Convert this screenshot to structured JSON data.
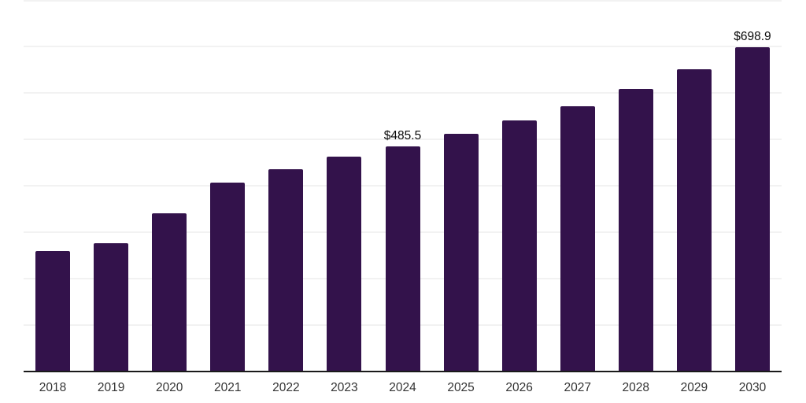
{
  "chart_data": {
    "type": "bar",
    "title": "",
    "xlabel": "",
    "ylabel": "",
    "categories": [
      "2018",
      "2019",
      "2020",
      "2021",
      "2022",
      "2023",
      "2024",
      "2025",
      "2026",
      "2027",
      "2028",
      "2029",
      "2030"
    ],
    "values": [
      259.5,
      276.4,
      340.7,
      406.8,
      435.6,
      462.7,
      485.5,
      511.9,
      540.7,
      571.2,
      608.5,
      650.8,
      698.9
    ],
    "shown_data_labels": [
      {
        "index": 6,
        "text": "$485.5"
      },
      {
        "index": 12,
        "text": "$698.9"
      }
    ],
    "ylim": [
      0,
      800
    ],
    "grid_step": 100,
    "grid": "horizontal-only",
    "legend": "none",
    "y_axis_labels_visible": false,
    "colors": {
      "bar": "#33124b",
      "axis_line": "#1a1a1a",
      "gridline": "#f2f2f2",
      "data_label_text": "#0a0a0a",
      "tick_label_text": "#333333",
      "background": "#ffffff"
    }
  }
}
